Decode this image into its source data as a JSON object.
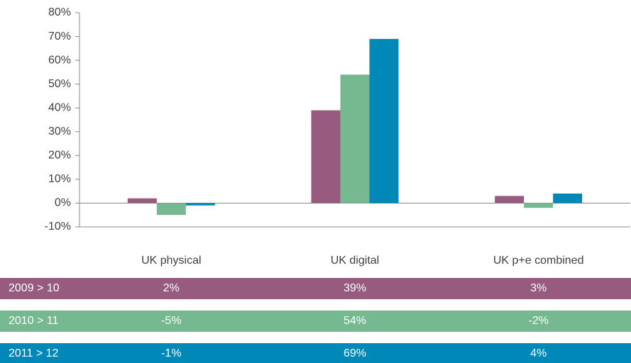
{
  "chart_data": {
    "type": "bar",
    "categories": [
      "UK physical",
      "UK digital",
      "UK p+e combined"
    ],
    "series": [
      {
        "name": "2009 > 10",
        "color": "#985b80",
        "values": [
          2,
          39,
          3
        ],
        "value_labels": [
          "2%",
          "39%",
          "3%"
        ]
      },
      {
        "name": "2010 > 11",
        "color": "#76b990",
        "values": [
          -5,
          54,
          -2
        ],
        "value_labels": [
          "-5%",
          "54%",
          "-2%"
        ]
      },
      {
        "name": "2011 > 12",
        "color": "#0089b8",
        "values": [
          -1,
          69,
          4
        ],
        "value_labels": [
          "-1%",
          "69%",
          "4%"
        ]
      }
    ],
    "ylim": [
      -10,
      80
    ],
    "yticks": [
      {
        "value": -10,
        "label": "-10%"
      },
      {
        "value": 0,
        "label": "0%"
      },
      {
        "value": 10,
        "label": "10%"
      },
      {
        "value": 20,
        "label": "20%"
      },
      {
        "value": 30,
        "label": "30%"
      },
      {
        "value": 40,
        "label": "40%"
      },
      {
        "value": 50,
        "label": "50%"
      },
      {
        "value": 60,
        "label": "60%"
      },
      {
        "value": 70,
        "label": "70%"
      },
      {
        "value": 80,
        "label": "80%"
      }
    ]
  }
}
